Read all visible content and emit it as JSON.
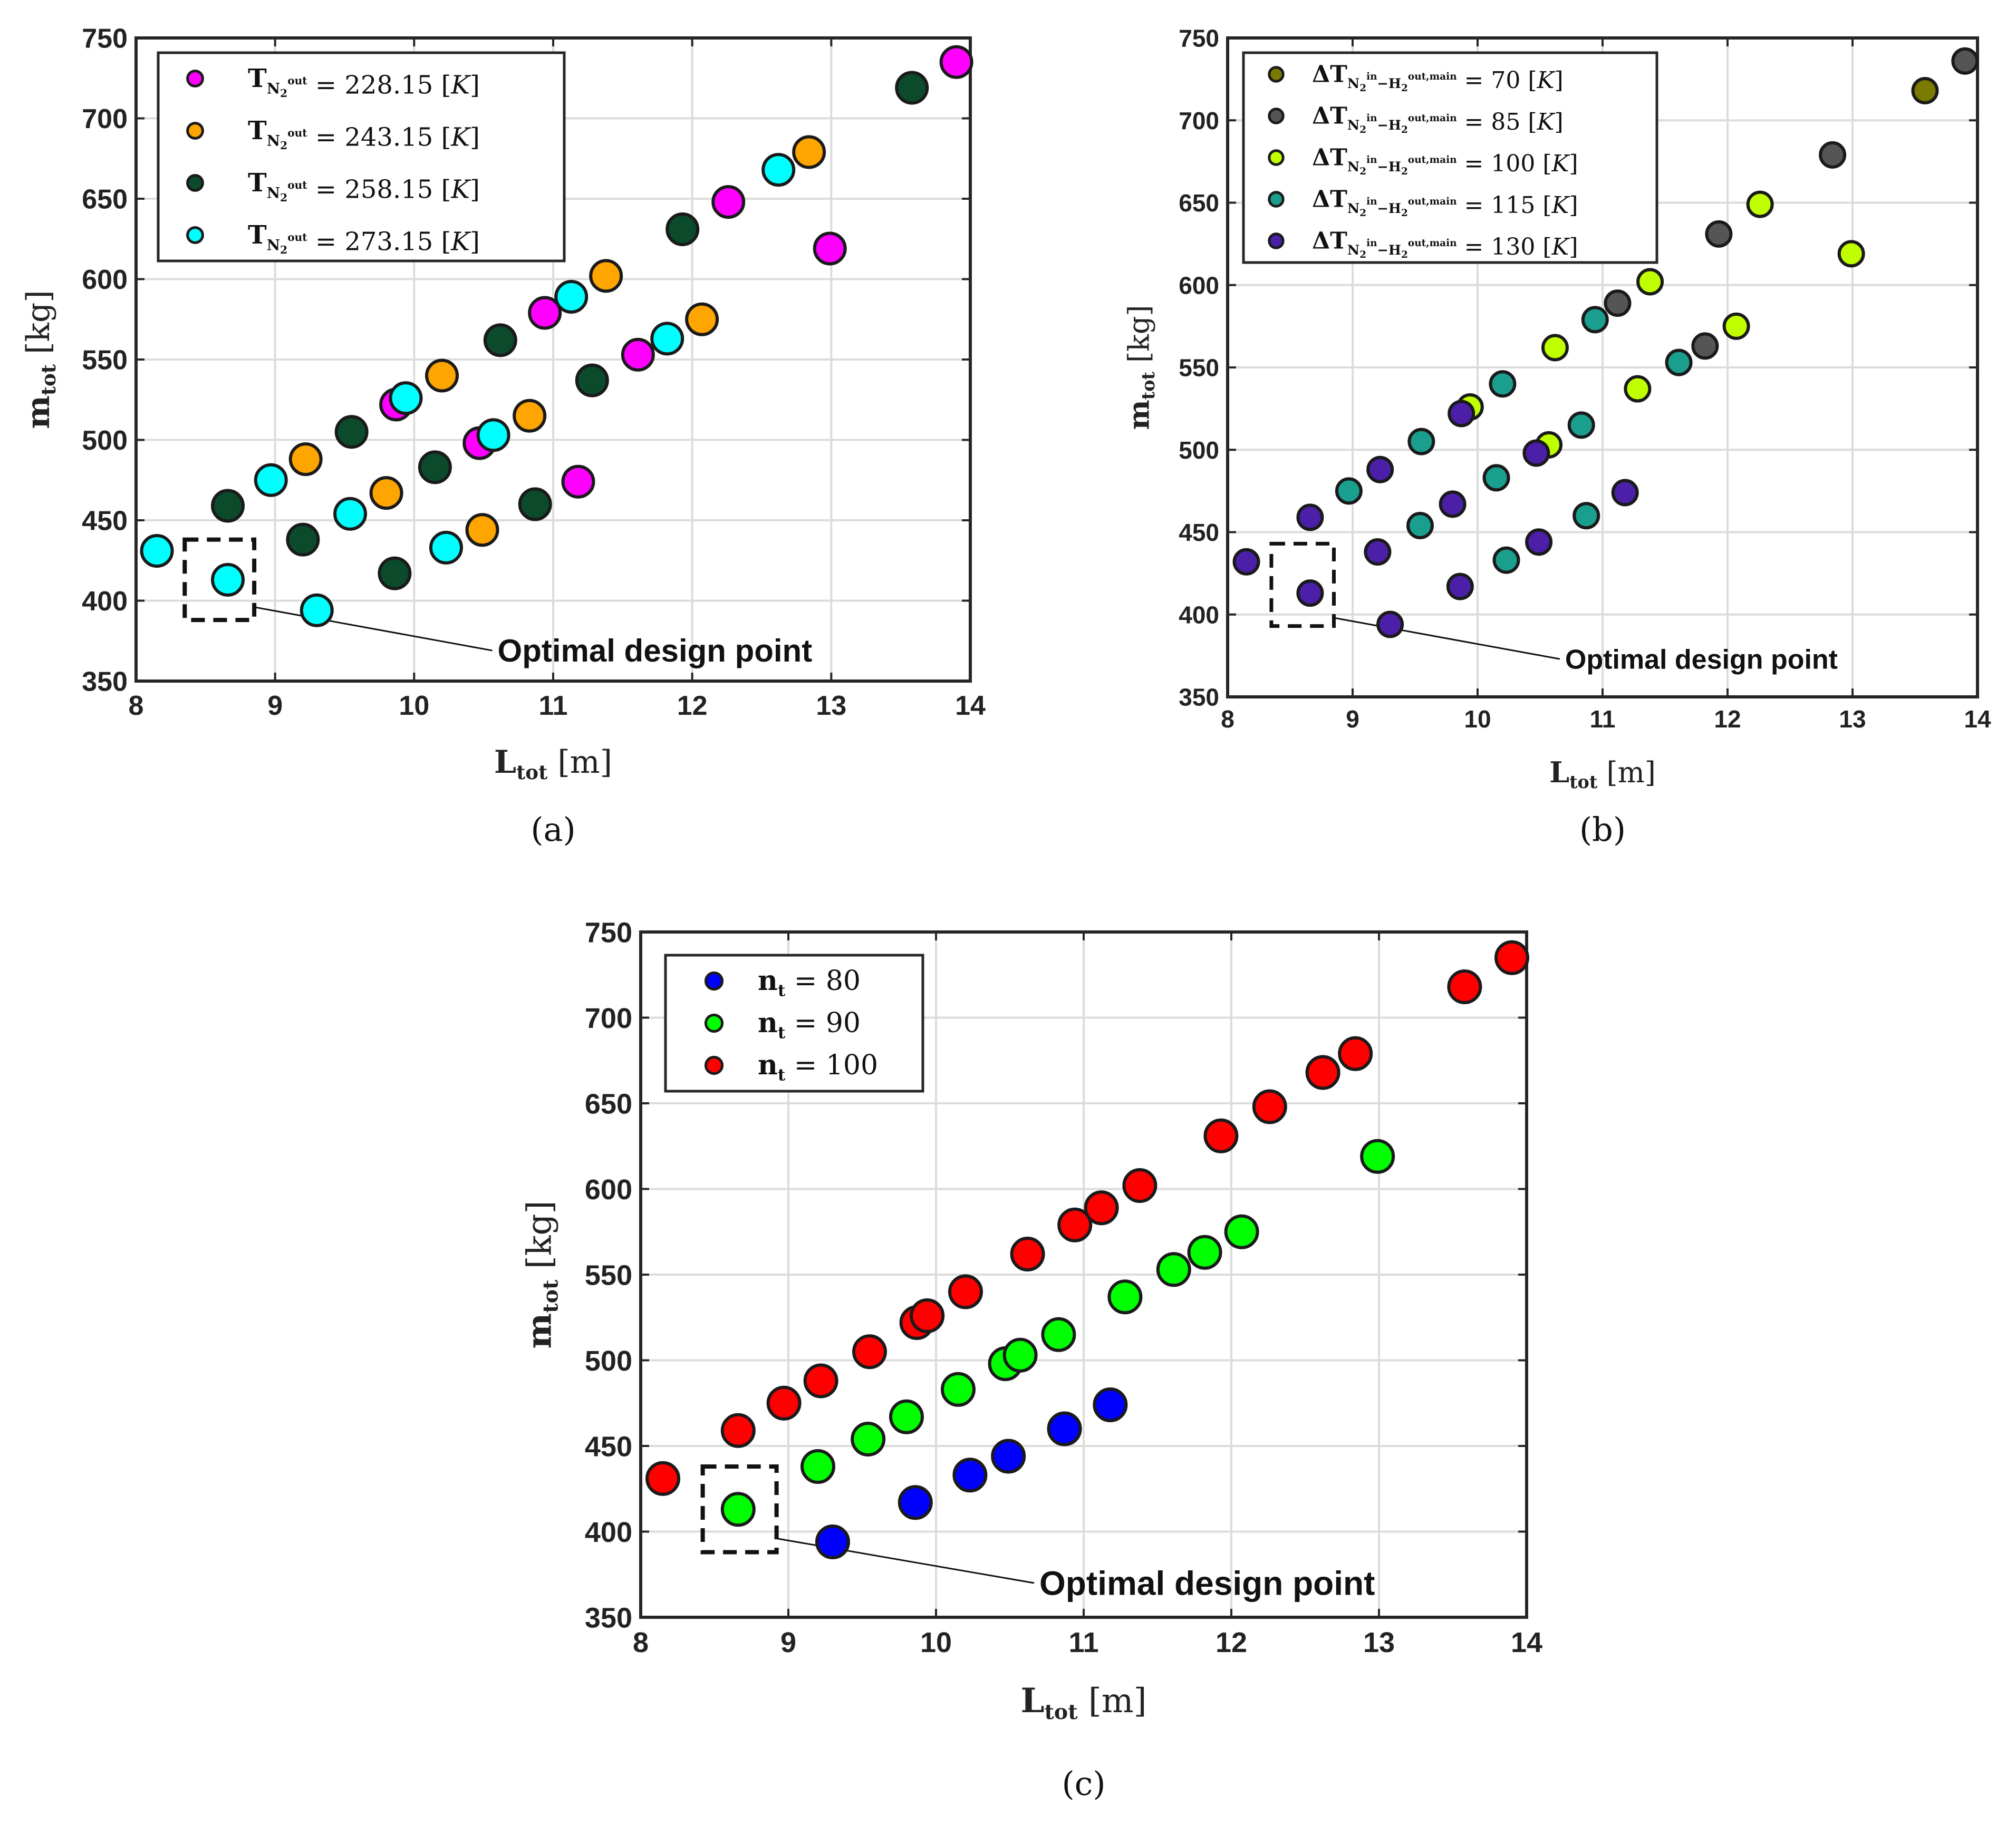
{
  "chart_data": [
    {
      "type": "scatter",
      "caption": "(a)",
      "xlabel": {
        "main": "L",
        "sub": "tot",
        "unit": "[m]"
      },
      "ylabel": {
        "main": "m",
        "sub": "tot",
        "unit": "[kg]"
      },
      "xlim": [
        8,
        14
      ],
      "ylim": [
        350,
        750
      ],
      "xticks": [
        "8",
        "9",
        "10",
        "11",
        "12",
        "13",
        "14"
      ],
      "yticks": [
        "350",
        "400",
        "450",
        "500",
        "550",
        "600",
        "650",
        "700",
        "750"
      ],
      "grid": true,
      "legend_position": "top-left",
      "annotation": {
        "text": "Optimal design point",
        "box_x": [
          8.35,
          8.85
        ],
        "box_y": [
          388,
          438
        ],
        "pointer_to": [
          9.0,
          396
        ],
        "label_at": [
          10.6,
          369
        ]
      },
      "series": [
        {
          "name": "T_N2out = 228.15 [K]",
          "legend": {
            "var": "T",
            "sub": "N",
            "subsub": "2",
            "sup": "out",
            "eq": "= 228.15",
            "unit": "K"
          },
          "color": "#ff00ff",
          "x": [
            9.87,
            10.47,
            10.94,
            11.18,
            11.61,
            12.26,
            12.99,
            13.9
          ],
          "y": [
            522,
            498,
            579,
            474,
            553,
            648,
            619,
            735
          ]
        },
        {
          "name": "T_N2out = 243.15 [K]",
          "legend": {
            "var": "T",
            "sub": "N",
            "subsub": "2",
            "sup": "out",
            "eq": "= 243.15",
            "unit": "K"
          },
          "color": "#ffa500",
          "x": [
            9.22,
            9.8,
            10.2,
            10.49,
            10.83,
            11.38,
            12.07,
            12.84
          ],
          "y": [
            488,
            467,
            540,
            444,
            515,
            602,
            575,
            679
          ]
        },
        {
          "name": "T_N2out = 258.15 [K]",
          "legend": {
            "var": "T",
            "sub": "N",
            "subsub": "2",
            "sup": "out",
            "eq": "= 258.15",
            "unit": "K"
          },
          "color": "#0b4a2a",
          "x": [
            8.66,
            9.2,
            9.55,
            9.86,
            10.15,
            10.62,
            10.87,
            11.28,
            11.93,
            13.58
          ],
          "y": [
            459,
            438,
            505,
            417,
            483,
            562,
            460,
            537,
            631,
            719
          ]
        },
        {
          "name": "T_N2out = 273.15 [K]",
          "legend": {
            "var": "T",
            "sub": "N",
            "subsub": "2",
            "sup": "out",
            "eq": "= 273.15",
            "unit": "K"
          },
          "color": "#00ffff",
          "x": [
            8.15,
            8.66,
            8.97,
            9.3,
            9.54,
            9.94,
            10.23,
            10.57,
            11.13,
            11.82,
            12.62
          ],
          "y": [
            431,
            413,
            475,
            394,
            454,
            526,
            433,
            503,
            589,
            563,
            668
          ]
        }
      ]
    },
    {
      "type": "scatter",
      "caption": "(b)",
      "xlabel": {
        "main": "L",
        "sub": "tot",
        "unit": "[m]"
      },
      "ylabel": {
        "main": "m",
        "sub": "tot",
        "unit": "[kg]"
      },
      "xlim": [
        8,
        14
      ],
      "ylim": [
        350,
        750
      ],
      "xticks": [
        "8",
        "9",
        "10",
        "11",
        "12",
        "13",
        "14"
      ],
      "yticks": [
        "350",
        "400",
        "450",
        "500",
        "550",
        "600",
        "650",
        "700",
        "750"
      ],
      "grid": true,
      "legend_position": "top-left",
      "annotation": {
        "text": "Optimal design point",
        "box_x": [
          8.35,
          8.85
        ],
        "box_y": [
          393,
          443
        ],
        "pointer_to": [
          9.0,
          398
        ],
        "label_at": [
          10.7,
          373
        ]
      },
      "series": [
        {
          "name": "dT = 70 [K]",
          "legend": {
            "var": "ΔT",
            "sub": "N",
            "subsub": "2",
            "sup": "in",
            "mid": "−H",
            "midsubsub": "2",
            "midsup": "out,main",
            "eq": "= 70",
            "unit": "K"
          },
          "color": "#7a7a00",
          "x": [
            13.58
          ],
          "y": [
            718
          ]
        },
        {
          "name": "dT = 85 [K]",
          "legend": {
            "var": "ΔT",
            "sub": "N",
            "subsub": "2",
            "sup": "in",
            "mid": "−H",
            "midsubsub": "2",
            "midsup": "out,main",
            "eq": "= 85",
            "unit": "K"
          },
          "color": "#555555",
          "x": [
            11.12,
            11.82,
            11.93,
            12.84,
            13.9
          ],
          "y": [
            589,
            563,
            631,
            679,
            736
          ]
        },
        {
          "name": "dT = 100 [K]",
          "legend": {
            "var": "ΔT",
            "sub": "N",
            "subsub": "2",
            "sup": "in",
            "mid": "−H",
            "midsubsub": "2",
            "midsup": "out,main",
            "eq": "= 100",
            "unit": "K"
          },
          "color": "#bfff00",
          "x": [
            9.94,
            10.57,
            10.62,
            11.28,
            11.38,
            12.07,
            12.26,
            12.99
          ],
          "y": [
            526,
            503,
            562,
            537,
            602,
            575,
            649,
            619
          ]
        },
        {
          "name": "dT = 115 [K]",
          "legend": {
            "var": "ΔT",
            "sub": "N",
            "subsub": "2",
            "sup": "in",
            "mid": "−H",
            "midsubsub": "2",
            "midsup": "out,main",
            "eq": "= 115",
            "unit": "K"
          },
          "color": "#1a9e8e",
          "x": [
            8.97,
            9.54,
            9.55,
            10.15,
            10.2,
            10.23,
            10.83,
            10.87,
            10.94,
            11.61
          ],
          "y": [
            475,
            454,
            505,
            483,
            540,
            433,
            515,
            460,
            579,
            553
          ]
        },
        {
          "name": "dT = 130 [K]",
          "legend": {
            "var": "ΔT",
            "sub": "N",
            "subsub": "2",
            "sup": "in",
            "mid": "−H",
            "midsubsub": "2",
            "midsup": "out,main",
            "eq": "= 130",
            "unit": "K"
          },
          "color": "#4b1fa8",
          "x": [
            8.15,
            8.66,
            8.66,
            9.2,
            9.22,
            9.3,
            9.8,
            9.86,
            9.87,
            10.47,
            10.49,
            11.18
          ],
          "y": [
            432,
            459,
            413,
            438,
            488,
            394,
            467,
            417,
            522,
            498,
            444,
            474
          ]
        }
      ]
    },
    {
      "type": "scatter",
      "caption": "(c)",
      "xlabel": {
        "main": "L",
        "sub": "tot",
        "unit": "[m]"
      },
      "ylabel": {
        "main": "m",
        "sub": "tot",
        "unit": "[kg]"
      },
      "xlim": [
        8,
        14
      ],
      "ylim": [
        350,
        750
      ],
      "xticks": [
        "8",
        "9",
        "10",
        "11",
        "12",
        "13",
        "14"
      ],
      "yticks": [
        "350",
        "400",
        "450",
        "500",
        "550",
        "600",
        "650",
        "700",
        "750"
      ],
      "grid": true,
      "legend_position": "top-left",
      "annotation": {
        "text": "Optimal design point",
        "box_x": [
          8.42,
          8.92
        ],
        "box_y": [
          388,
          438
        ],
        "pointer_to": [
          9.0,
          396
        ],
        "label_at": [
          10.7,
          370
        ]
      },
      "series": [
        {
          "name": "n_t = 80",
          "legend": {
            "var": "n",
            "sub": "t",
            "eq": "= 80"
          },
          "color": "#0000ff",
          "x": [
            9.3,
            9.86,
            10.23,
            10.49,
            10.87,
            11.18
          ],
          "y": [
            394,
            417,
            433,
            444,
            460,
            474
          ]
        },
        {
          "name": "n_t = 90",
          "legend": {
            "var": "n",
            "sub": "t",
            "eq": "= 90"
          },
          "color": "#00ff00",
          "x": [
            8.66,
            9.2,
            9.54,
            9.8,
            10.15,
            10.47,
            10.57,
            10.83,
            11.28,
            11.61,
            11.82,
            12.07,
            12.99
          ],
          "y": [
            413,
            438,
            454,
            467,
            483,
            498,
            503,
            515,
            537,
            553,
            563,
            575,
            619
          ]
        },
        {
          "name": "n_t = 100",
          "legend": {
            "var": "n",
            "sub": "t",
            "eq": "= 100"
          },
          "color": "#ff0000",
          "x": [
            8.15,
            8.66,
            8.97,
            9.22,
            9.55,
            9.87,
            9.94,
            10.2,
            10.62,
            10.94,
            11.12,
            11.38,
            11.93,
            12.26,
            12.62,
            12.84,
            13.58,
            13.9
          ],
          "y": [
            431,
            459,
            475,
            488,
            505,
            522,
            526,
            540,
            562,
            579,
            589,
            602,
            631,
            648,
            668,
            679,
            718,
            735
          ]
        }
      ]
    }
  ]
}
